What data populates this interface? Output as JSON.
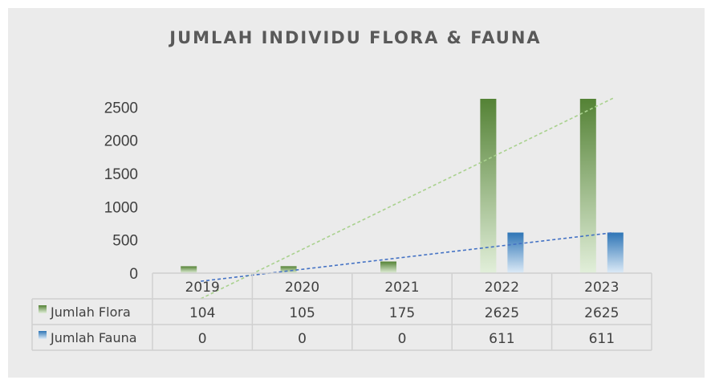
{
  "chart_data": {
    "type": "bar",
    "title": "JUMLAH INDIVIDU FLORA & FAUNA",
    "categories": [
      "2019",
      "2020",
      "2021",
      "2022",
      "2023"
    ],
    "series": [
      {
        "name": "Jumlah Flora",
        "values": [
          104,
          105,
          175,
          2625,
          2625
        ],
        "color": "#548235",
        "light_color": "#e2efda"
      },
      {
        "name": "Jumlah Fauna",
        "values": [
          0,
          0,
          0,
          611,
          611
        ],
        "color": "#2e75b6",
        "light_color": "#ddebf7"
      }
    ],
    "trendlines": [
      {
        "series": "Jumlah Flora",
        "type": "linear",
        "color": "#a9d18e"
      },
      {
        "series": "Jumlah Fauna",
        "type": "linear",
        "color": "#4472c4"
      }
    ],
    "y_ticks": [
      "0",
      "500",
      "1000",
      "1500",
      "2000",
      "2500"
    ],
    "ylim": [
      0,
      2625
    ],
    "grid": false,
    "legend": "data-table"
  }
}
